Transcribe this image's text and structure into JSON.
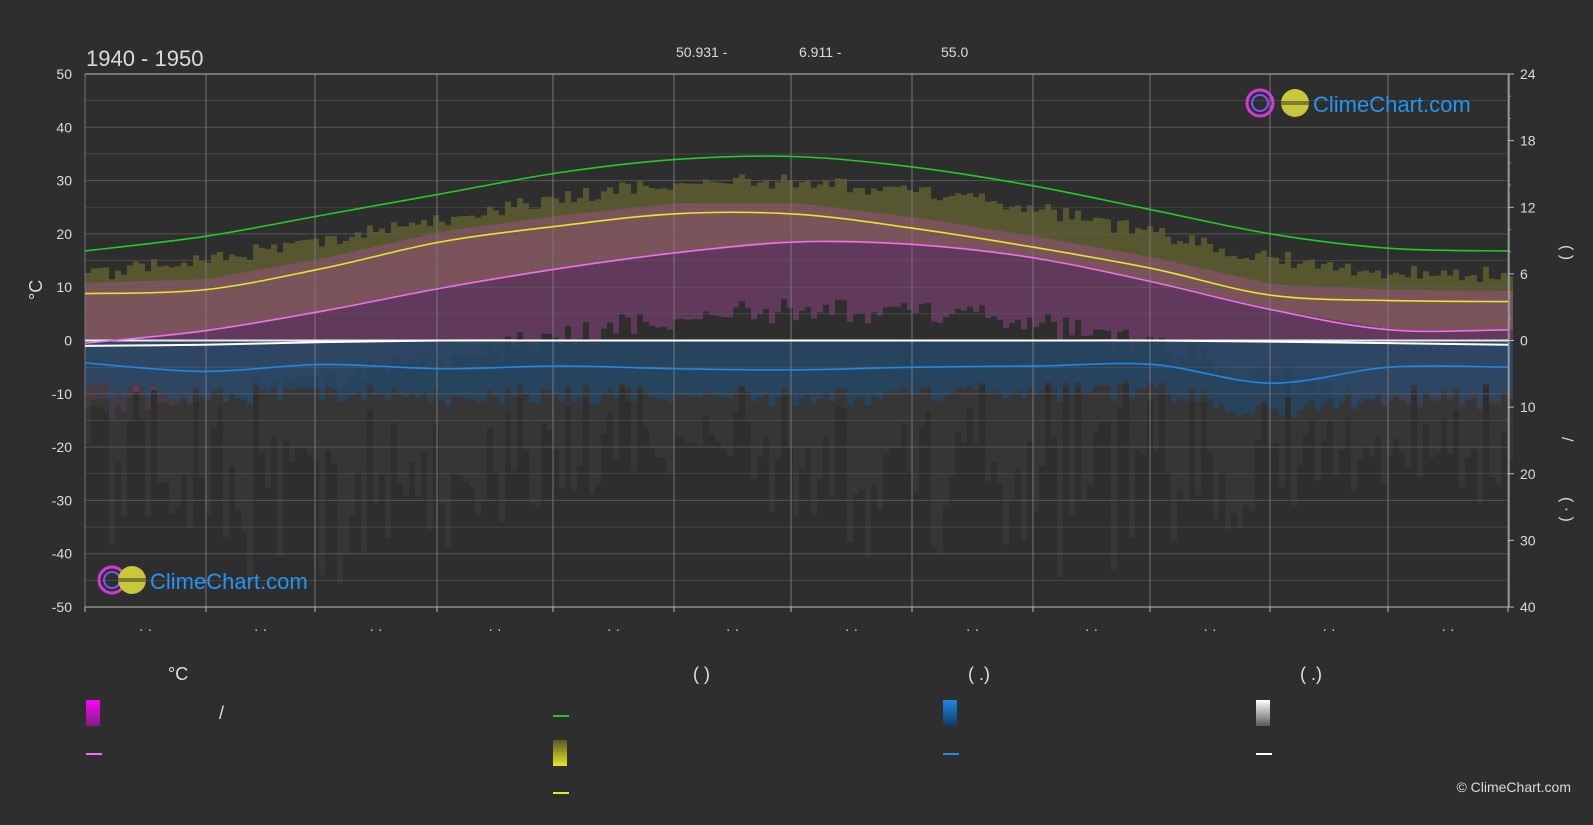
{
  "header": {
    "period": "1940 - 1950",
    "lat": "50.931 -",
    "lon": "6.911 -",
    "elev": "55.0"
  },
  "brand": {
    "name": "ClimeChart.com",
    "copyright": "© ClimeChart.com"
  },
  "axes": {
    "left_label": "°C",
    "right_label_top": "(   )",
    "right_label_mid": "/",
    "right_label_bottom": "(   ·   )"
  },
  "legend": {
    "heads": [
      "°C",
      "(          )",
      "(    .)",
      "(    .)"
    ],
    "slash": "/"
  },
  "colors": {
    "daylight": "#22cc22",
    "sunshine": "#e6e62a",
    "tmax": "#f06ef0",
    "precip": "#1e88e5",
    "snow": "#ffffff",
    "grid": "#5a5a5a",
    "bg": "#2e2e2e"
  },
  "chart_data": {
    "type": "line",
    "x": [
      0,
      1,
      2,
      3,
      4,
      5,
      6,
      7,
      8,
      9,
      10,
      11,
      12
    ],
    "ylim_left": [
      -50,
      50
    ],
    "yticks_left": [
      50,
      40,
      30,
      20,
      10,
      0,
      -10,
      -20,
      -30,
      -40,
      -50
    ],
    "yticks_right_top": [
      24,
      18,
      12,
      6,
      0
    ],
    "yticks_right_bottom": [
      10,
      20,
      30,
      40
    ],
    "series": [
      {
        "key": "daylight",
        "values": [
          16.8,
          19.5,
          23.5,
          27.5,
          31.5,
          34.0,
          34.5,
          32.5,
          29.0,
          24.5,
          20.0,
          17.3,
          16.8
        ]
      },
      {
        "key": "sunshine",
        "values": [
          8.8,
          9.5,
          13.5,
          18.5,
          21.5,
          23.8,
          23.7,
          21.0,
          17.5,
          13.5,
          8.5,
          7.5,
          7.3
        ]
      },
      {
        "key": "tmax",
        "values": [
          -0.5,
          1.8,
          5.5,
          9.8,
          13.5,
          16.5,
          18.5,
          18.0,
          15.5,
          11.0,
          5.8,
          2.0,
          2.0
        ]
      },
      {
        "key": "snow",
        "values": [
          -1.0,
          -0.8,
          -0.3,
          0,
          0,
          0,
          0,
          0,
          0,
          0,
          -0.2,
          -0.5,
          -0.8
        ]
      },
      {
        "key": "precip",
        "values": [
          -4.2,
          -5.8,
          -4.5,
          -5.3,
          -4.8,
          -5.3,
          -5.5,
          -5.0,
          -4.8,
          -4.5,
          -8.0,
          -5.0,
          -5.0
        ]
      }
    ]
  }
}
